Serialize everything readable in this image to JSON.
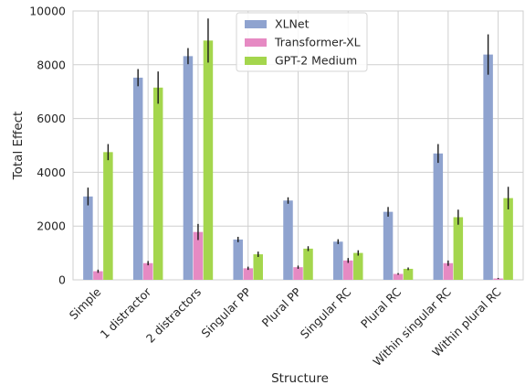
{
  "chart_data": {
    "type": "bar",
    "xlabel": "Structure",
    "ylabel": "Total Effect",
    "ylim": [
      0,
      10000
    ],
    "yticks": [
      0,
      2000,
      4000,
      6000,
      8000,
      10000
    ],
    "grid": true,
    "legend_position": "top-center",
    "categories": [
      "Simple",
      "1 distractor",
      "2 distractors",
      "Singular PP",
      "Plural PP",
      "Singular RC",
      "Plural RC",
      "Within singular RC",
      "Within plural RC"
    ],
    "series": [
      {
        "name": "XLNet",
        "color": "#8fa3cf",
        "values": [
          3100,
          7520,
          8320,
          1500,
          2950,
          1420,
          2530,
          4700,
          8380
        ],
        "error": [
          330,
          320,
          300,
          100,
          120,
          90,
          180,
          350,
          750
        ]
      },
      {
        "name": "Transformer-XL",
        "color": "#e68ac3",
        "values": [
          320,
          620,
          1780,
          430,
          470,
          720,
          220,
          620,
          50
        ],
        "error": [
          60,
          80,
          300,
          60,
          60,
          90,
          30,
          100,
          20
        ]
      },
      {
        "name": "GPT-2 Medium",
        "color": "#a4d64d",
        "values": [
          4750,
          7150,
          8900,
          950,
          1160,
          1000,
          410,
          2330,
          3040
        ],
        "error": [
          300,
          600,
          820,
          100,
          90,
          100,
          50,
          280,
          420
        ]
      }
    ]
  }
}
